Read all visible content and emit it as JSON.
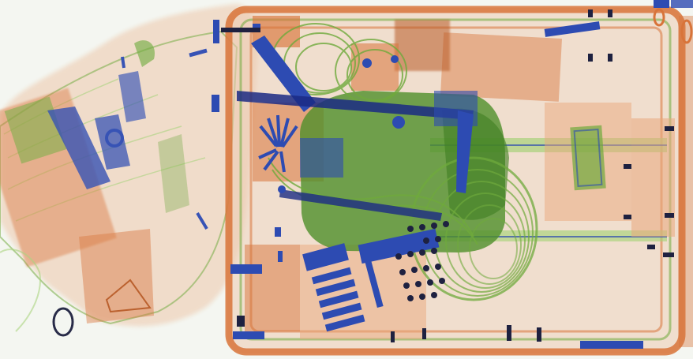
{
  "scene": {
    "description_visible_text": "",
    "colors": {
      "background": "#f4f6f1",
      "organic_orange": "#d8743a",
      "organic_orange_light": "#e9a77b",
      "inorganic_green": "#6faa3c",
      "inorganic_green_light": "#a7d27a",
      "metal_blue": "#2d4bb2",
      "metal_blue_dark": "#1b2a84",
      "metal_black": "#1e2140"
    }
  }
}
